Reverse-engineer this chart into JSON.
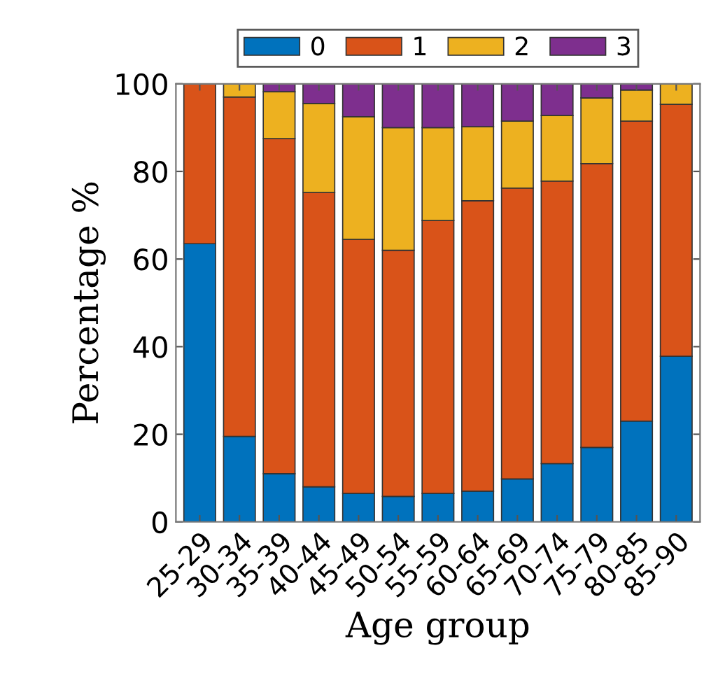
{
  "chart_data": {
    "type": "bar",
    "stacked": true,
    "xlabel": "Age group",
    "ylabel": "Percentage %",
    "categories": [
      "25-29",
      "30-34",
      "35-39",
      "40-44",
      "45-49",
      "50-54",
      "55-59",
      "60-64",
      "65-69",
      "70-74",
      "75-79",
      "80-85",
      "85-90"
    ],
    "series": [
      {
        "name": "0",
        "color": "#0072bd",
        "values": [
          63.5,
          19.5,
          11,
          8,
          6.5,
          5.8,
          6.5,
          7,
          9.8,
          13.3,
          17,
          23,
          37.8
        ]
      },
      {
        "name": "1",
        "color": "#d95319",
        "values": [
          36.5,
          77.5,
          76.5,
          67.2,
          58,
          56.2,
          62.3,
          66.3,
          66.4,
          64.5,
          64.8,
          68.5,
          57.5
        ]
      },
      {
        "name": "2",
        "color": "#edb120",
        "values": [
          null,
          3,
          10.7,
          20.3,
          28,
          28,
          21.2,
          16.9,
          15.3,
          15,
          15,
          7.1,
          4.7
        ]
      },
      {
        "name": "3",
        "color": "#7e2f8e",
        "values": [
          null,
          null,
          1.8,
          4.5,
          7.5,
          10,
          10,
          9.8,
          8.5,
          7.2,
          3.2,
          1.4,
          null
        ]
      }
    ],
    "ylim": [
      0,
      100
    ],
    "yticks": [
      0,
      20,
      40,
      60,
      80,
      100
    ],
    "grid": false,
    "legend": "top"
  }
}
